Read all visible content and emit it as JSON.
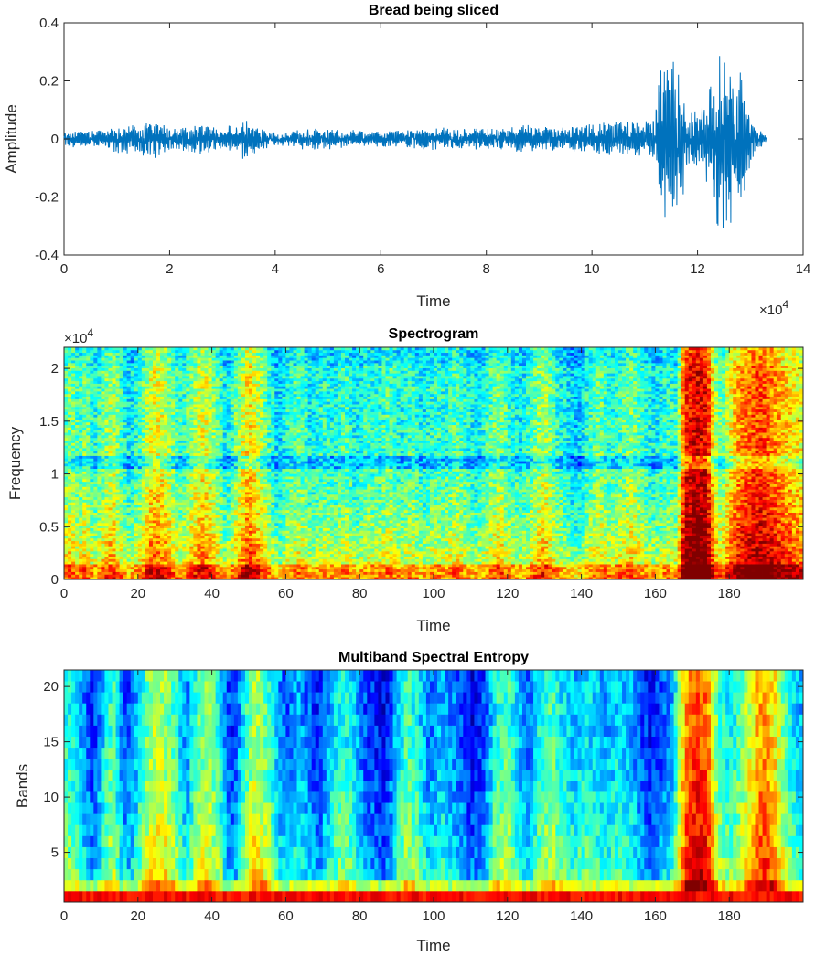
{
  "chart_data": [
    {
      "type": "line",
      "title": "Bread being sliced",
      "xlabel": "Time",
      "ylabel": "Amplitude",
      "xlim": [
        0,
        140000
      ],
      "ylim": [
        -0.4,
        0.4
      ],
      "x_multiplier": "×10",
      "x_multiplier_exp": "4",
      "xticks": [
        0,
        20000,
        40000,
        60000,
        80000,
        100000,
        120000,
        140000
      ],
      "xtick_labels": [
        "0",
        "2",
        "4",
        "6",
        "8",
        "10",
        "12",
        "14"
      ],
      "yticks": [
        -0.4,
        -0.2,
        0,
        0.2,
        0.4
      ],
      "ytick_labels": [
        "-0.4",
        "-0.2",
        "0",
        "0.2",
        "0.4"
      ],
      "color": "#0072BD",
      "signal_end": 133000,
      "envelope": [
        [
          0,
          0.03
        ],
        [
          8000,
          0.03
        ],
        [
          10000,
          0.05
        ],
        [
          15000,
          0.06
        ],
        [
          17000,
          0.08
        ],
        [
          19000,
          0.05
        ],
        [
          22000,
          0.04
        ],
        [
          26000,
          0.06
        ],
        [
          30000,
          0.04
        ],
        [
          34000,
          0.08
        ],
        [
          36000,
          0.05
        ],
        [
          40000,
          0.03
        ],
        [
          46000,
          0.04
        ],
        [
          52000,
          0.035
        ],
        [
          58000,
          0.03
        ],
        [
          64000,
          0.03
        ],
        [
          70000,
          0.04
        ],
        [
          76000,
          0.04
        ],
        [
          82000,
          0.04
        ],
        [
          88000,
          0.05
        ],
        [
          94000,
          0.04
        ],
        [
          98000,
          0.05
        ],
        [
          104000,
          0.06
        ],
        [
          108000,
          0.07
        ],
        [
          110000,
          0.06
        ],
        [
          112000,
          0.1
        ],
        [
          113000,
          0.25
        ],
        [
          115000,
          0.3
        ],
        [
          117000,
          0.22
        ],
        [
          118000,
          0.12
        ],
        [
          120000,
          0.1
        ],
        [
          122000,
          0.2
        ],
        [
          124000,
          0.32
        ],
        [
          126000,
          0.37
        ],
        [
          128000,
          0.25
        ],
        [
          130000,
          0.1
        ],
        [
          131000,
          0.05
        ],
        [
          133000,
          0.01
        ]
      ]
    },
    {
      "type": "heatmap",
      "title": "Spectrogram",
      "xlabel": "Time",
      "ylabel": "Frequency",
      "xlim": [
        0,
        200
      ],
      "ylim": [
        0,
        22000
      ],
      "y_multiplier": "×10",
      "y_multiplier_exp": "4",
      "xticks": [
        0,
        20,
        40,
        60,
        80,
        100,
        120,
        140,
        160,
        180
      ],
      "yticks": [
        0,
        5000,
        10000,
        15000,
        20000
      ],
      "ytick_labels": [
        "0",
        "0.5",
        "1",
        "1.5",
        "2"
      ],
      "colormap": "jet",
      "n_time_bins": 200,
      "n_freq_bins": 90,
      "column_intensity": [
        [
          0,
          0.45
        ],
        [
          2,
          0.5
        ],
        [
          4,
          0.42
        ],
        [
          6,
          0.5
        ],
        [
          8,
          0.38
        ],
        [
          10,
          0.45
        ],
        [
          13,
          0.55
        ],
        [
          16,
          0.4
        ],
        [
          18,
          0.35
        ],
        [
          21,
          0.45
        ],
        [
          24,
          0.62
        ],
        [
          27,
          0.58
        ],
        [
          30,
          0.45
        ],
        [
          32,
          0.4
        ],
        [
          35,
          0.52
        ],
        [
          38,
          0.6
        ],
        [
          41,
          0.48
        ],
        [
          44,
          0.35
        ],
        [
          47,
          0.5
        ],
        [
          50,
          0.65
        ],
        [
          53,
          0.55
        ],
        [
          56,
          0.4
        ],
        [
          58,
          0.32
        ],
        [
          61,
          0.42
        ],
        [
          64,
          0.46
        ],
        [
          67,
          0.36
        ],
        [
          70,
          0.42
        ],
        [
          73,
          0.38
        ],
        [
          76,
          0.45
        ],
        [
          79,
          0.36
        ],
        [
          82,
          0.42
        ],
        [
          85,
          0.4
        ],
        [
          88,
          0.46
        ],
        [
          91,
          0.38
        ],
        [
          94,
          0.44
        ],
        [
          97,
          0.36
        ],
        [
          100,
          0.42
        ],
        [
          103,
          0.4
        ],
        [
          106,
          0.46
        ],
        [
          109,
          0.4
        ],
        [
          112,
          0.35
        ],
        [
          115,
          0.44
        ],
        [
          118,
          0.5
        ],
        [
          121,
          0.4
        ],
        [
          124,
          0.36
        ],
        [
          127,
          0.46
        ],
        [
          130,
          0.55
        ],
        [
          133,
          0.42
        ],
        [
          136,
          0.36
        ],
        [
          139,
          0.3
        ],
        [
          142,
          0.42
        ],
        [
          145,
          0.48
        ],
        [
          148,
          0.4
        ],
        [
          151,
          0.44
        ],
        [
          154,
          0.5
        ],
        [
          157,
          0.4
        ],
        [
          160,
          0.36
        ],
        [
          163,
          0.42
        ],
        [
          166,
          0.4
        ],
        [
          168,
          0.85
        ],
        [
          171,
          0.9
        ],
        [
          174,
          0.88
        ],
        [
          176,
          0.55
        ],
        [
          178,
          0.45
        ],
        [
          180,
          0.6
        ],
        [
          183,
          0.72
        ],
        [
          186,
          0.78
        ],
        [
          189,
          0.8
        ],
        [
          192,
          0.74
        ],
        [
          195,
          0.68
        ],
        [
          199,
          0.6
        ]
      ]
    },
    {
      "type": "heatmap",
      "title": "Multiband Spectral Entropy",
      "xlabel": "Time",
      "ylabel": "Bands",
      "xlim": [
        0,
        200
      ],
      "ylim": [
        0.5,
        21.5
      ],
      "xticks": [
        0,
        20,
        40,
        60,
        80,
        100,
        120,
        140,
        160,
        180
      ],
      "yticks": [
        5,
        10,
        15,
        20
      ],
      "colormap": "jet",
      "n_time_bins": 200,
      "n_bands": 21,
      "column_intensity": [
        [
          0,
          0.42
        ],
        [
          3,
          0.35
        ],
        [
          6,
          0.22
        ],
        [
          8,
          0.15
        ],
        [
          10,
          0.3
        ],
        [
          13,
          0.45
        ],
        [
          15,
          0.3
        ],
        [
          17,
          0.18
        ],
        [
          19,
          0.25
        ],
        [
          22,
          0.45
        ],
        [
          25,
          0.55
        ],
        [
          28,
          0.5
        ],
        [
          31,
          0.38
        ],
        [
          33,
          0.25
        ],
        [
          36,
          0.45
        ],
        [
          39,
          0.5
        ],
        [
          42,
          0.4
        ],
        [
          44,
          0.2
        ],
        [
          46,
          0.15
        ],
        [
          49,
          0.4
        ],
        [
          52,
          0.55
        ],
        [
          55,
          0.45
        ],
        [
          58,
          0.28
        ],
        [
          60,
          0.2
        ],
        [
          63,
          0.3
        ],
        [
          66,
          0.22
        ],
        [
          69,
          0.15
        ],
        [
          72,
          0.3
        ],
        [
          75,
          0.4
        ],
        [
          78,
          0.35
        ],
        [
          81,
          0.2
        ],
        [
          84,
          0.15
        ],
        [
          87,
          0.1
        ],
        [
          90,
          0.3
        ],
        [
          93,
          0.45
        ],
        [
          96,
          0.35
        ],
        [
          99,
          0.22
        ],
        [
          102,
          0.3
        ],
        [
          105,
          0.25
        ],
        [
          108,
          0.18
        ],
        [
          111,
          0.1
        ],
        [
          114,
          0.2
        ],
        [
          117,
          0.4
        ],
        [
          120,
          0.45
        ],
        [
          123,
          0.3
        ],
        [
          126,
          0.22
        ],
        [
          129,
          0.4
        ],
        [
          132,
          0.45
        ],
        [
          135,
          0.35
        ],
        [
          138,
          0.3
        ],
        [
          141,
          0.35
        ],
        [
          144,
          0.32
        ],
        [
          147,
          0.28
        ],
        [
          150,
          0.35
        ],
        [
          153,
          0.3
        ],
        [
          156,
          0.2
        ],
        [
          159,
          0.12
        ],
        [
          162,
          0.2
        ],
        [
          165,
          0.3
        ],
        [
          168,
          0.7
        ],
        [
          171,
          0.82
        ],
        [
          174,
          0.75
        ],
        [
          177,
          0.45
        ],
        [
          180,
          0.35
        ],
        [
          183,
          0.45
        ],
        [
          186,
          0.6
        ],
        [
          189,
          0.72
        ],
        [
          192,
          0.65
        ],
        [
          195,
          0.45
        ],
        [
          199,
          0.3
        ]
      ]
    }
  ]
}
